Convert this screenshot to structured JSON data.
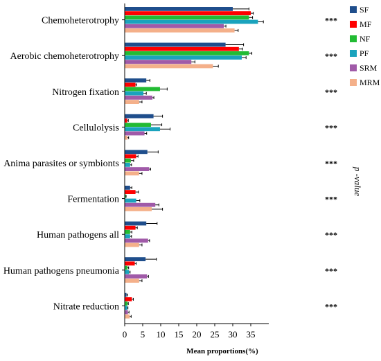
{
  "chart_data": {
    "type": "bar",
    "orientation": "horizontal",
    "categories": [
      "Chemoheterotrophy",
      "Aerobic chemoheterotrophy",
      "Nitrogen fixation",
      "Cellulolysis",
      "Anima parasites or symbionts",
      "Fermentation",
      "Human pathogens all",
      "Human pathogens pneumonia",
      "Nitrate  reduction"
    ],
    "series": [
      {
        "name": "SF",
        "color": "#1f4e8c",
        "values": [
          30.0,
          28.0,
          6.0,
          8.0,
          6.3,
          1.5,
          6.0,
          5.8,
          0.5
        ],
        "errors": [
          4.5,
          5.0,
          1.0,
          2.5,
          3.0,
          0.5,
          3.0,
          3.0,
          0.3
        ]
      },
      {
        "name": "MF",
        "color": "#ff0000",
        "values": [
          35.0,
          31.7,
          3.0,
          0.7,
          3.2,
          3.0,
          3.0,
          2.8,
          2.0
        ],
        "errors": [
          0.7,
          1.0,
          0.3,
          0.3,
          0.5,
          0.8,
          0.5,
          0.4,
          0.4
        ]
      },
      {
        "name": "NF",
        "color": "#22bb33",
        "values": [
          34.5,
          34.5,
          9.8,
          7.3,
          1.7,
          0.3,
          1.5,
          0.8,
          0.8
        ],
        "errors": [
          1.0,
          0.8,
          2.0,
          3.0,
          0.8,
          0.1,
          0.5,
          0.3,
          0.2
        ]
      },
      {
        "name": "PF",
        "color": "#1aa3bd",
        "values": [
          37.0,
          32.5,
          5.2,
          9.8,
          1.5,
          3.2,
          1.5,
          1.2,
          0.7
        ],
        "errors": [
          1.5,
          1.2,
          0.8,
          2.8,
          0.4,
          1.0,
          0.4,
          0.3,
          0.2
        ]
      },
      {
        "name": "SRM",
        "color": "#a05aa8",
        "values": [
          27.5,
          18.5,
          7.7,
          5.5,
          6.8,
          8.5,
          6.5,
          6.2,
          0.9
        ],
        "errors": [
          0.6,
          1.0,
          0.4,
          0.6,
          0.4,
          1.0,
          0.4,
          0.4,
          0.3
        ]
      },
      {
        "name": "MRM",
        "color": "#f4b08a",
        "values": [
          30.5,
          24.5,
          4.0,
          0.8,
          4.0,
          7.5,
          4.0,
          4.0,
          1.4
        ],
        "errors": [
          1.0,
          1.5,
          0.8,
          0.3,
          0.8,
          3.0,
          0.8,
          0.8,
          0.4
        ]
      }
    ],
    "significance": [
      "***",
      "***",
      "***",
      "***",
      "***",
      "***",
      "***",
      "***",
      "***"
    ],
    "xlabel": "Mean proportions(%)",
    "xlim": [
      0,
      40
    ],
    "xticks": [
      0,
      5,
      10,
      15,
      20,
      25,
      30,
      35
    ],
    "right_label": "p -value",
    "legend_position": "top-right",
    "grid": false
  }
}
